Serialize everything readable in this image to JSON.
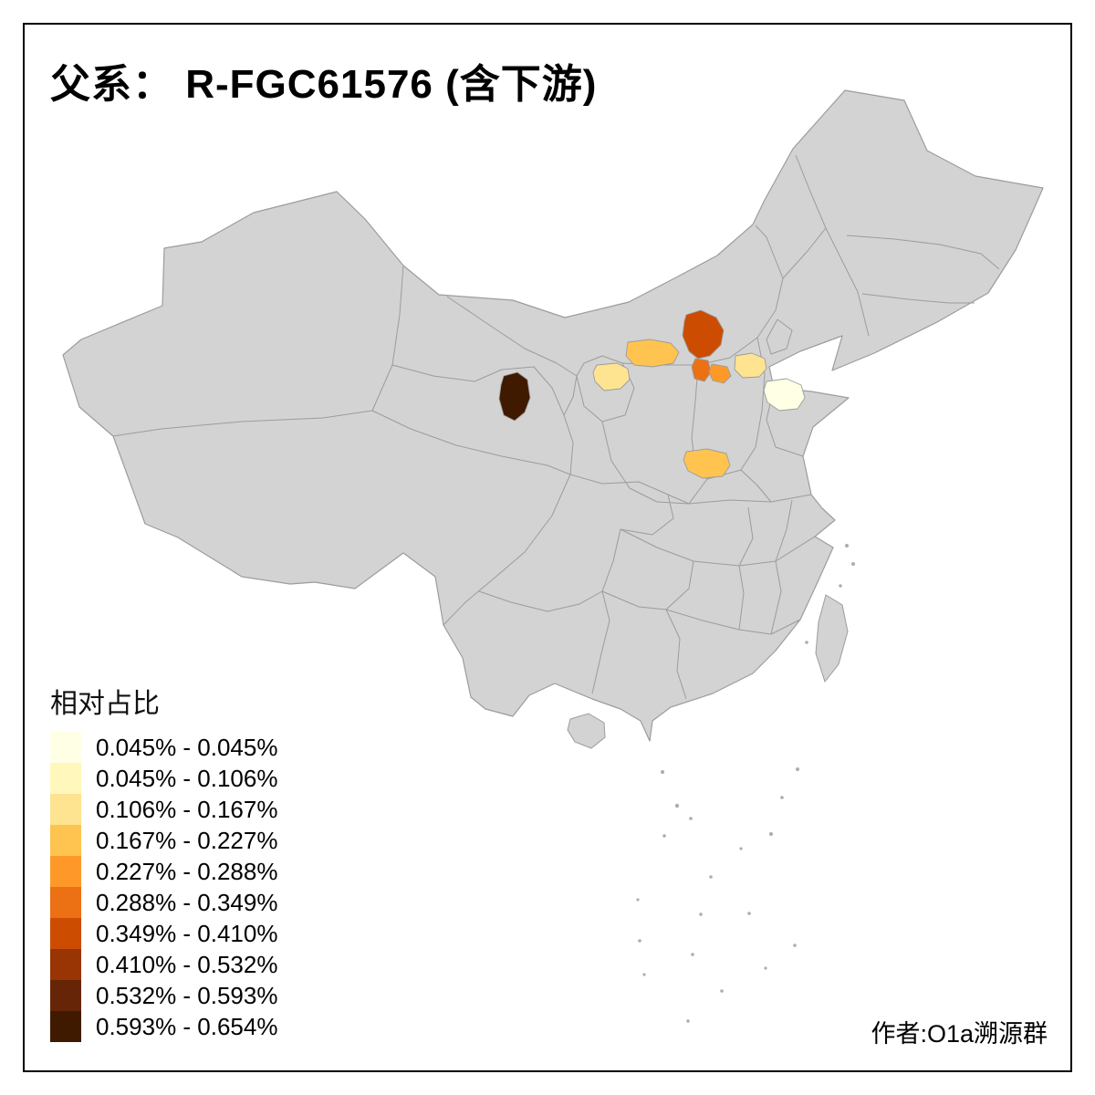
{
  "page": {
    "background": "#FFFFFF",
    "frame_color": "#000000"
  },
  "title": "父系： R-FGC61576 (含下游)",
  "author": "作者:O1a溯源群",
  "legend": {
    "title": "相对占比",
    "items": [
      {
        "label": "0.045% - 0.045%",
        "color": "#FFFFE5"
      },
      {
        "label": "0.045% - 0.106%",
        "color": "#FFF7BC"
      },
      {
        "label": "0.106% - 0.167%",
        "color": "#FEE391"
      },
      {
        "label": "0.167% - 0.227%",
        "color": "#FEC44F"
      },
      {
        "label": "0.227% - 0.288%",
        "color": "#FE9929"
      },
      {
        "label": "0.288% - 0.349%",
        "color": "#EC7014"
      },
      {
        "label": "0.349% - 0.410%",
        "color": "#CC4C02"
      },
      {
        "label": "0.410% - 0.532%",
        "color": "#993404"
      },
      {
        "label": "0.532% - 0.593%",
        "color": "#662506"
      },
      {
        "label": "0.593% - 0.654%",
        "color": "#3F1A01"
      }
    ]
  },
  "map": {
    "base_fill": "#D3D3D3",
    "border_color": "#9C9C9C",
    "speck_color": "#ADADAD",
    "regions": [
      {
        "id": "r1",
        "range": "0.593% - 0.654%",
        "color": "#3F1A01"
      },
      {
        "id": "r2",
        "range": "0.349% - 0.410%",
        "color": "#CC4C02"
      },
      {
        "id": "r3",
        "range": "0.288% - 0.349%",
        "color": "#EC7014"
      },
      {
        "id": "r4",
        "range": "0.227% - 0.288%",
        "color": "#FE9929"
      },
      {
        "id": "r5",
        "range": "0.167% - 0.227%",
        "color": "#FEC44F"
      },
      {
        "id": "r6",
        "range": "0.106% - 0.167%",
        "color": "#FEE391"
      },
      {
        "id": "r7",
        "range": "0.106% - 0.167%",
        "color": "#FEE391"
      },
      {
        "id": "r8",
        "range": "0.045% - 0.045%",
        "color": "#FFFFE5"
      },
      {
        "id": "r9",
        "range": "0.167% - 0.227%",
        "color": "#FEC44F"
      }
    ]
  }
}
